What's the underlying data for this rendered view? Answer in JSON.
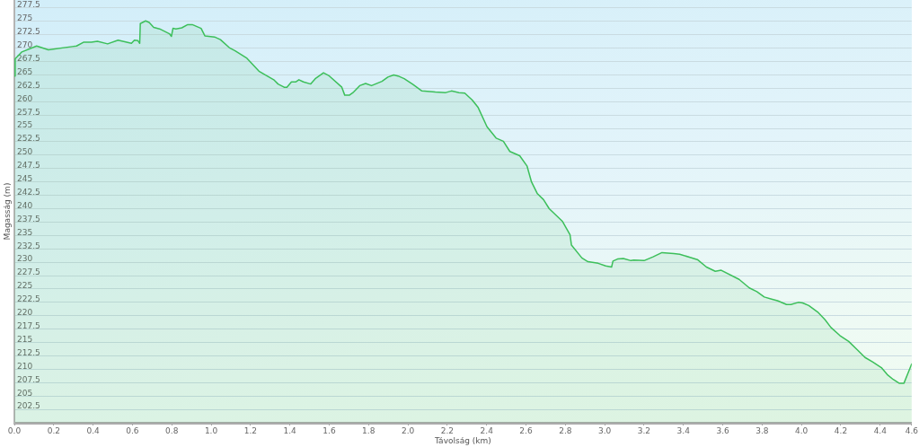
{
  "chart_data": {
    "type": "area",
    "xlabel": "Távolság (km)",
    "ylabel": "Magasság (m)",
    "color": "#3cbf5a",
    "grid": "y",
    "xlim": [
      0,
      4.56
    ],
    "xticks": [
      {
        "value": 0,
        "label": "0.0"
      },
      0.2,
      0.4,
      0.6,
      0.8,
      {
        "value": 1,
        "label": "1.0"
      },
      1.2,
      1.4,
      1.6,
      1.8,
      {
        "value": 2,
        "label": "2.0"
      },
      2.2,
      2.4,
      2.6,
      2.8,
      {
        "value": 3,
        "label": "3.0"
      },
      3.2,
      3.4,
      3.6,
      3.8,
      {
        "value": 4,
        "label": "4.0"
      },
      4.2,
      4.4,
      {
        "value": 4.56,
        "label": "4.6"
      }
    ],
    "ylim": [
      200,
      279
    ],
    "yticks": [
      202.5,
      205,
      207.5,
      210,
      212.5,
      215,
      217.5,
      220,
      222.5,
      225,
      227.5,
      230,
      232.5,
      235,
      237.5,
      240,
      242.5,
      245,
      247.5,
      250,
      252.5,
      255,
      257.5,
      260,
      262.5,
      265,
      267.5,
      270,
      272.5,
      275,
      277.5
    ],
    "x": [
      0,
      0.004,
      0.038,
      0.113,
      0.173,
      0.294,
      0.316,
      0.351,
      0.391,
      0.422,
      0.474,
      0.527,
      0.595,
      0.61,
      0.628,
      0.637,
      0.64,
      0.667,
      0.685,
      0.708,
      0.738,
      0.788,
      0.798,
      0.806,
      0.821,
      0.851,
      0.881,
      0.904,
      0.949,
      0.968,
      1.017,
      1.047,
      1.092,
      1.122,
      1.182,
      1.243,
      1.318,
      1.34,
      1.371,
      1.385,
      1.408,
      1.431,
      1.446,
      1.469,
      1.506,
      1.529,
      1.571,
      1.597,
      1.664,
      1.679,
      1.702,
      1.724,
      1.755,
      1.785,
      1.815,
      1.868,
      1.898,
      1.928,
      1.95,
      1.981,
      2.026,
      2.071,
      2.139,
      2.192,
      2.221,
      2.259,
      2.289,
      2.327,
      2.357,
      2.402,
      2.448,
      2.485,
      2.518,
      2.568,
      2.605,
      2.628,
      2.658,
      2.689,
      2.718,
      2.786,
      2.824,
      2.831,
      2.884,
      2.915,
      2.967,
      3.005,
      3.035,
      3.042,
      3.065,
      3.095,
      3.133,
      3.148,
      3.2,
      3.246,
      3.291,
      3.351,
      3.381,
      3.434,
      3.471,
      3.517,
      3.562,
      3.592,
      3.683,
      3.735,
      3.773,
      3.811,
      3.848,
      3.878,
      3.924,
      3.946,
      3.984,
      4.006,
      4.037,
      4.082,
      4.119,
      4.15,
      4.195,
      4.24,
      4.285,
      4.323,
      4.361,
      4.406,
      4.436,
      4.466,
      4.496,
      4.521,
      4.56
    ],
    "values": [
      264.8,
      268.0,
      269.3,
      270.4,
      269.7,
      270.3,
      270.4,
      271.1,
      271.1,
      271.3,
      270.8,
      271.5,
      270.9,
      271.5,
      271.4,
      270.9,
      274.6,
      275.1,
      274.8,
      273.9,
      273.6,
      272.7,
      272.2,
      273.7,
      273.6,
      273.8,
      274.4,
      274.4,
      273.7,
      272.3,
      272.1,
      271.6,
      270.1,
      269.5,
      268.1,
      265.7,
      264.1,
      263.3,
      262.7,
      262.7,
      263.7,
      263.7,
      264.1,
      263.7,
      263.3,
      264.3,
      265.4,
      264.9,
      262.7,
      261.2,
      261.2,
      261.8,
      263.0,
      263.4,
      263.0,
      263.8,
      264.6,
      265.0,
      264.8,
      264.3,
      263.2,
      262.0,
      261.8,
      261.7,
      262.0,
      261.7,
      261.6,
      260.3,
      258.9,
      255.3,
      253.2,
      252.6,
      250.7,
      249.9,
      248.0,
      245.0,
      242.8,
      241.7,
      240.0,
      237.6,
      235.1,
      233.2,
      230.8,
      230.1,
      229.8,
      229.3,
      229.1,
      230.2,
      230.6,
      230.7,
      230.3,
      230.4,
      230.3,
      231.0,
      231.8,
      231.6,
      231.5,
      230.9,
      230.5,
      229.1,
      228.3,
      228.5,
      226.8,
      225.2,
      224.5,
      223.5,
      223.1,
      222.8,
      222.1,
      222.1,
      222.5,
      222.4,
      221.9,
      220.7,
      219.3,
      217.8,
      216.3,
      215.2,
      213.6,
      212.2,
      211.4,
      210.3,
      209.0,
      208.1,
      207.4,
      207.4,
      211.0
    ]
  }
}
